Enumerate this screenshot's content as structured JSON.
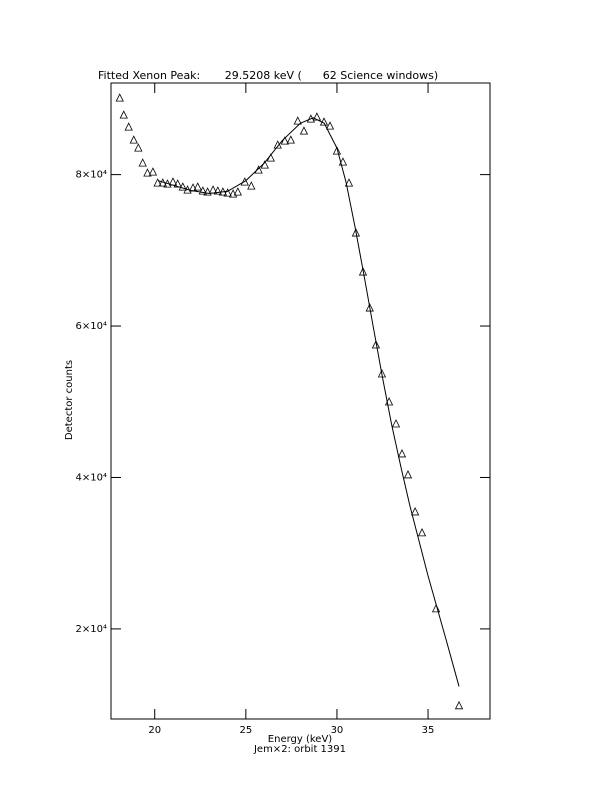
{
  "chart_data": {
    "type": "scatter-fit",
    "title": "Fitted Xenon Peak:       29.5208 keV (      62 Science windows)",
    "xlabel": "Energy (keV)",
    "subtitle": "Jem×2: orbit 1391",
    "ylabel": "Detector counts",
    "xlim": [
      17.6,
      38.4
    ],
    "ylim": [
      8100,
      92100
    ],
    "xticks": [
      20,
      25,
      30,
      35
    ],
    "yticks": [
      {
        "value": 20000,
        "label": "2×10⁴"
      },
      {
        "value": 40000,
        "label": "4×10⁴"
      },
      {
        "value": 60000,
        "label": "6×10⁴"
      },
      {
        "value": 80000,
        "label": "8×10⁴"
      }
    ],
    "color": "#000000",
    "points": {
      "x": [
        18.08,
        18.3,
        18.57,
        18.85,
        19.1,
        19.34,
        19.6,
        19.9,
        20.16,
        20.44,
        20.7,
        21.0,
        21.26,
        21.54,
        21.8,
        22.1,
        22.36,
        22.64,
        22.9,
        23.2,
        23.46,
        23.74,
        24.0,
        24.3,
        24.56,
        24.94,
        25.3,
        25.7,
        26.04,
        26.37,
        26.75,
        27.14,
        27.47,
        27.85,
        28.19,
        28.57,
        28.9,
        29.29,
        29.62,
        30.0,
        30.33,
        30.66,
        31.04,
        31.43,
        31.8,
        32.14,
        32.47,
        32.86,
        33.24,
        33.57,
        33.9,
        34.29,
        34.67,
        35.44,
        36.7
      ],
      "values": [
        90164,
        87920,
        86336,
        84620,
        83564,
        81584,
        80264,
        80396,
        78944,
        78944,
        78812,
        79076,
        78812,
        78416,
        78020,
        78284,
        78416,
        77888,
        77756,
        78020,
        77888,
        77756,
        77624,
        77492,
        77756,
        79076,
        78548,
        80660,
        81320,
        82244,
        83960,
        84488,
        84620,
        87128,
        85808,
        87392,
        87656,
        86996,
        86468,
        83168,
        81716,
        78944,
        72344,
        67196,
        62444,
        57560,
        53732,
        50036,
        47132,
        43172,
        40400,
        35516,
        32744,
        22712,
        9908
      ]
    },
    "fit": {
      "x": [
        20.2,
        21,
        22,
        23,
        24,
        25,
        26,
        27,
        28,
        28.7,
        29.3,
        30,
        30.5,
        31,
        31.5,
        32,
        32.5,
        33,
        33.5,
        34,
        35,
        36,
        36.7
      ],
      "values": [
        79200,
        78600,
        77900,
        77500,
        77800,
        79200,
        81500,
        84500,
        86800,
        87500,
        86800,
        83500,
        79000,
        73000,
        66500,
        59800,
        53200,
        47000,
        41500,
        36300,
        27000,
        18500,
        12400
      ]
    }
  }
}
